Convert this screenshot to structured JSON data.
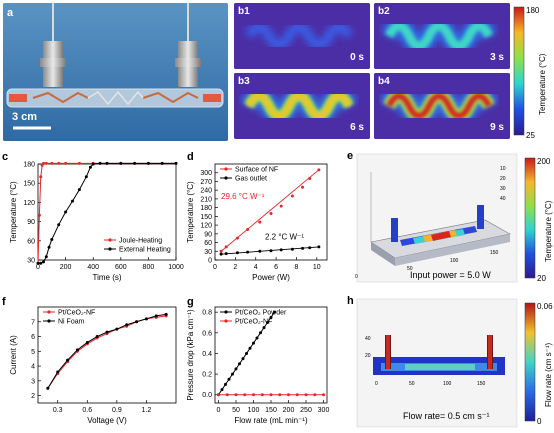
{
  "panel_a": {
    "label": "a",
    "scale": "3 cm"
  },
  "panel_b": {
    "tiles": [
      {
        "label": "b1",
        "time": "0 s"
      },
      {
        "label": "b2",
        "time": "3 s"
      },
      {
        "label": "b3",
        "time": "6 s"
      },
      {
        "label": "b4",
        "time": "9 s"
      }
    ],
    "colorbar": {
      "title": "Temperature (°C)",
      "max": "180",
      "min": "25"
    }
  },
  "panel_c": {
    "label": "c",
    "xlabel": "Time (s)",
    "ylabel": "Temperature (°C)"
  },
  "panel_d": {
    "label": "d",
    "xlabel": "Power (W)",
    "ylabel": "Temperature (°C)",
    "annot1": "29.6 °C W⁻¹",
    "annot2": "2.2 °C W⁻¹"
  },
  "panel_e": {
    "label": "e",
    "note": "Input power = 5.0 W",
    "colorbar": {
      "title": "Temperature (°C)",
      "max": "200",
      "min": "20"
    },
    "axis_ticks": [
      "10",
      "20",
      "30",
      "40",
      "50",
      "100",
      "150",
      "0"
    ]
  },
  "panel_f": {
    "label": "f",
    "xlabel": "Voltage (V)",
    "ylabel": "Current (A)"
  },
  "panel_g": {
    "label": "g",
    "xlabel": "Flow rate (mL min⁻¹)",
    "ylabel": "Pressure drop (kPa cm⁻¹)"
  },
  "panel_h": {
    "label": "h",
    "note": "Flow rate= 0.5 cm s⁻¹",
    "colorbar": {
      "title": "Flow rate (cm s⁻¹)",
      "max": "0.06",
      "min": "0"
    },
    "axis_ticks": [
      "40",
      "20",
      "0",
      "50",
      "100",
      "150"
    ]
  },
  "chart_data": [
    {
      "id": "c",
      "type": "line",
      "xlim": [
        0,
        1000
      ],
      "ylim": [
        30,
        180
      ],
      "xticks": [
        "0",
        "200",
        "400",
        "600",
        "800",
        "1000"
      ],
      "yticks": [
        "30",
        "60",
        "90",
        "120",
        "150",
        "180"
      ],
      "series": [
        {
          "name": "Joule-Heating",
          "color": "#e8262a",
          "x": [
            0,
            10,
            20,
            30,
            40,
            60,
            100,
            150,
            200,
            300,
            400,
            500,
            600,
            700,
            800,
            900,
            1000
          ],
          "y": [
            25,
            100,
            160,
            178,
            181,
            181,
            181,
            181,
            181,
            181,
            181,
            181,
            181,
            181,
            181,
            181,
            181
          ]
        },
        {
          "name": "External Heating",
          "color": "#000000",
          "x": [
            0,
            20,
            40,
            60,
            80,
            100,
            150,
            200,
            250,
            300,
            350,
            380,
            400,
            450,
            500,
            600,
            700,
            800,
            900,
            1000
          ],
          "y": [
            25,
            25,
            27,
            35,
            50,
            62,
            85,
            105,
            122,
            140,
            160,
            175,
            180,
            181,
            181,
            181,
            181,
            181,
            181,
            181
          ]
        }
      ]
    },
    {
      "id": "d",
      "type": "scatter",
      "xlim": [
        0,
        11
      ],
      "ylim": [
        0,
        330
      ],
      "xticks": [
        "0",
        "2",
        "4",
        "6",
        "8",
        "10"
      ],
      "yticks": [
        "0",
        "30",
        "60",
        "90",
        "120",
        "150",
        "180",
        "210",
        "240",
        "270",
        "300"
      ],
      "series": [
        {
          "name": "Surface of NF",
          "color": "#e8262a",
          "x": [
            0.6,
            1.1,
            2.2,
            3.2,
            4.4,
            5.5,
            6.5,
            7.6,
            8.6,
            9.3,
            10.2
          ],
          "y": [
            30,
            45,
            75,
            105,
            130,
            160,
            185,
            220,
            250,
            280,
            310
          ]
        },
        {
          "name": "Gas outlet",
          "color": "#000000",
          "x": [
            0.6,
            1.1,
            2.2,
            3.2,
            4.4,
            5.5,
            6.5,
            7.6,
            8.6,
            9.3,
            10.2
          ],
          "y": [
            20,
            22,
            25,
            27,
            30,
            32,
            35,
            37,
            40,
            42,
            45
          ]
        }
      ]
    },
    {
      "id": "f",
      "type": "line",
      "xlim": [
        0.1,
        1.5
      ],
      "ylim": [
        1.5,
        8
      ],
      "xticks": [
        "0.3",
        "0.6",
        "0.9",
        "1.2"
      ],
      "yticks": [
        "2",
        "3",
        "4",
        "5",
        "6",
        "7"
      ],
      "series": [
        {
          "name": "Pt/CeO₂-NF",
          "color": "#e8262a",
          "x": [
            0.2,
            0.3,
            0.4,
            0.5,
            0.6,
            0.7,
            0.8,
            0.9,
            1.0,
            1.1,
            1.2,
            1.3,
            1.4
          ],
          "y": [
            2.5,
            3.5,
            4.3,
            5.0,
            5.5,
            5.9,
            6.2,
            6.5,
            6.7,
            7.0,
            7.2,
            7.3,
            7.4
          ]
        },
        {
          "name": "Ni Foam",
          "color": "#000000",
          "x": [
            0.2,
            0.3,
            0.4,
            0.5,
            0.6,
            0.7,
            0.8,
            0.9,
            1.0,
            1.1,
            1.2,
            1.3,
            1.4
          ],
          "y": [
            2.5,
            3.6,
            4.4,
            5.1,
            5.6,
            6.0,
            6.3,
            6.5,
            6.8,
            7.0,
            7.2,
            7.4,
            7.5
          ]
        }
      ]
    },
    {
      "id": "g",
      "type": "line",
      "xlim": [
        -10,
        310
      ],
      "ylim": [
        -0.08,
        0.85
      ],
      "xticks": [
        "0",
        "50",
        "100",
        "150",
        "200",
        "250",
        "300"
      ],
      "yticks": [
        "0.0",
        "0.2",
        "0.4",
        "0.6",
        "0.8"
      ],
      "series": [
        {
          "name": "Pt/CeO₂ Powder",
          "color": "#000000",
          "x": [
            0,
            10,
            20,
            30,
            40,
            50,
            60,
            70,
            80,
            90,
            100,
            110,
            120,
            130,
            140,
            150,
            160
          ],
          "y": [
            0.0,
            0.05,
            0.1,
            0.15,
            0.2,
            0.25,
            0.3,
            0.35,
            0.4,
            0.45,
            0.5,
            0.55,
            0.6,
            0.65,
            0.7,
            0.75,
            0.8
          ]
        },
        {
          "name": "Pt/CeO₂-NF",
          "color": "#e8262a",
          "x": [
            0,
            25,
            50,
            75,
            100,
            125,
            150,
            175,
            200,
            225,
            250,
            275,
            300
          ],
          "y": [
            0.0,
            0.0,
            0.0,
            0.0,
            0.0,
            0.0,
            0.0,
            0.0,
            0.0,
            0.0,
            0.0,
            0.0,
            0.0
          ]
        }
      ]
    }
  ]
}
